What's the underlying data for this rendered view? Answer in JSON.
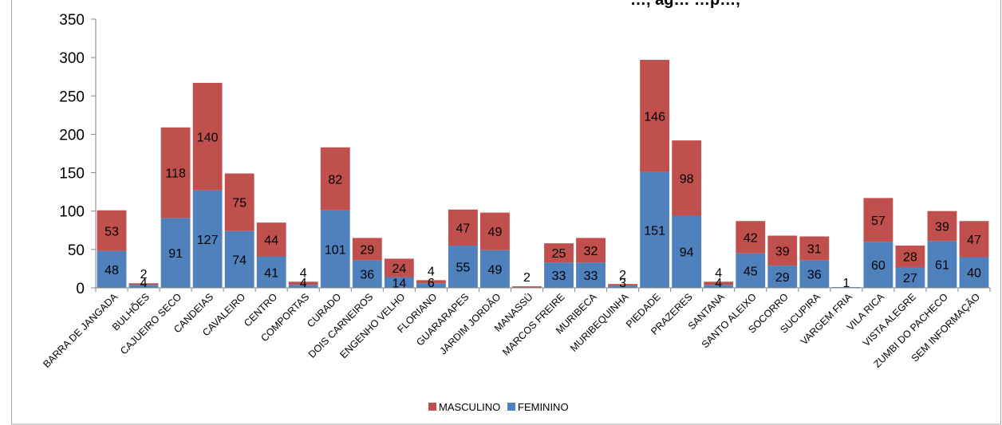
{
  "chart_data": {
    "type": "bar",
    "stacked": true,
    "title": "…, ag… …p…,",
    "xlabel": "",
    "ylabel": "",
    "ylim": [
      0,
      350
    ],
    "yticks": [
      0,
      50,
      100,
      150,
      200,
      250,
      300,
      350
    ],
    "grid": false,
    "legend_position": "bottom",
    "categories": [
      "BARRA DE JANGADA",
      "BULHÕES",
      "CAJUEIRO SECO",
      "CANDEIAS",
      "CAVALEIRO",
      "CENTRO",
      "COMPORTAS",
      "CURADO",
      "DOIS CARNEIROS",
      "ENGENHO VELHO",
      "FLORIANO",
      "GUARARAPES",
      "JARDIM JORDÃO",
      "MANASSÚ",
      "MARCOS FREIRE",
      "MURIBECA",
      "MURIBEQUINHA",
      "PIEDADE",
      "PRAZERES",
      "SANTANA",
      "SANTO ALEIXO",
      "SOCORRO",
      "SUCUPIRA",
      "VARGEM FRIA",
      "VILA RICA",
      "VISTA ALEGRE",
      "ZUMBI DO PACHECO",
      "SEM INFORMAÇÃO"
    ],
    "series": [
      {
        "name": "FEMININO",
        "color": "#4f81bd",
        "values": [
          48,
          4,
          91,
          127,
          74,
          41,
          4,
          101,
          36,
          14,
          6,
          55,
          49,
          null,
          33,
          33,
          3,
          151,
          94,
          4,
          45,
          29,
          36,
          1,
          60,
          27,
          61,
          40
        ]
      },
      {
        "name": "MASCULINO",
        "color": "#c0504d",
        "values": [
          53,
          2,
          118,
          140,
          75,
          44,
          4,
          82,
          29,
          24,
          4,
          47,
          49,
          2,
          25,
          32,
          2,
          146,
          98,
          4,
          42,
          39,
          31,
          null,
          57,
          28,
          39,
          47
        ]
      }
    ],
    "legend_order": [
      "MASCULINO",
      "FEMININO"
    ]
  }
}
